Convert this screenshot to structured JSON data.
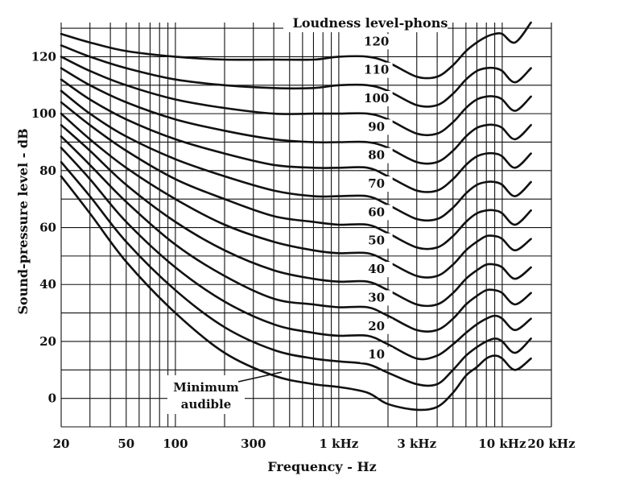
{
  "chart_data": {
    "type": "line",
    "title": "Loudness level-phons",
    "xlabel": "Frequency - Hz",
    "ylabel": "Sound-pressure level - dB",
    "xscale": "log",
    "xlim": [
      20,
      20000
    ],
    "ylim": [
      -10,
      132
    ],
    "grid": true,
    "x_tick_labels": [
      {
        "value": 20,
        "label": "20"
      },
      {
        "value": 50,
        "label": "50"
      },
      {
        "value": 100,
        "label": "100"
      },
      {
        "value": 300,
        "label": "300"
      },
      {
        "value": 1000,
        "label": "1 kHz"
      },
      {
        "value": 3000,
        "label": "3 kHz"
      },
      {
        "value": 10000,
        "label": "10 kHz"
      },
      {
        "value": 20000,
        "label": "20 kHz"
      }
    ],
    "y_tick_labels": [
      {
        "value": 0,
        "label": "0"
      },
      {
        "value": 20,
        "label": "20"
      },
      {
        "value": 40,
        "label": "40"
      },
      {
        "value": 60,
        "label": "60"
      },
      {
        "value": 80,
        "label": "80"
      },
      {
        "value": 100,
        "label": "100"
      },
      {
        "value": 120,
        "label": "120"
      }
    ],
    "curve_labels": [
      {
        "text": "120",
        "value": 120
      },
      {
        "text": "110",
        "value": 110
      },
      {
        "text": "100",
        "value": 100
      },
      {
        "text": "90",
        "value": 90
      },
      {
        "text": "80",
        "value": 80
      },
      {
        "text": "70",
        "value": 70
      },
      {
        "text": "60",
        "value": 60
      },
      {
        "text": "50",
        "value": 50
      },
      {
        "text": "40",
        "value": 40
      },
      {
        "text": "30",
        "value": 30
      },
      {
        "text": "20",
        "value": 20
      },
      {
        "text": "10",
        "value": 10
      }
    ],
    "annotation": {
      "line1": "Minimum",
      "line2": "audible"
    },
    "x": [
      20,
      30,
      50,
      100,
      200,
      400,
      700,
      1000,
      1500,
      2000,
      3000,
      4000,
      5000,
      6000,
      7000,
      8000,
      9000,
      10000,
      12000,
      15000
    ],
    "series": [
      {
        "label": "Minimum audible",
        "values": [
          78,
          65,
          48,
          30,
          16,
          8,
          5,
          4,
          2,
          -2,
          -4,
          -3,
          2,
          8,
          11,
          14,
          15,
          14,
          10,
          14
        ]
      },
      {
        "label": "10",
        "values": [
          83,
          71,
          55,
          38,
          25,
          17,
          14,
          13,
          12,
          9,
          5,
          5,
          10,
          15,
          18,
          20,
          21,
          20,
          16,
          21
        ]
      },
      {
        "label": "20",
        "values": [
          88,
          77,
          62,
          46,
          34,
          26,
          23,
          22,
          22,
          19,
          14,
          15,
          19,
          23,
          26,
          28,
          29,
          28,
          24,
          28
        ]
      },
      {
        "label": "30",
        "values": [
          92,
          82,
          69,
          54,
          43,
          35,
          33,
          32,
          32,
          29,
          24,
          24,
          28,
          33,
          36,
          38,
          38,
          37,
          33,
          37
        ]
      },
      {
        "label": "40",
        "values": [
          96,
          87,
          75,
          62,
          52,
          45,
          42,
          41,
          41,
          38,
          33,
          33,
          37,
          42,
          45,
          47,
          47,
          46,
          42,
          46
        ]
      },
      {
        "label": "50",
        "values": [
          100,
          91,
          81,
          70,
          61,
          55,
          52,
          51,
          51,
          48,
          43,
          43,
          47,
          52,
          55,
          57,
          57,
          56,
          52,
          56
        ]
      },
      {
        "label": "60",
        "values": [
          104,
          96,
          87,
          77,
          70,
          64,
          62,
          61,
          61,
          58,
          53,
          53,
          57,
          62,
          65,
          66,
          66,
          65,
          61,
          66
        ]
      },
      {
        "label": "70",
        "values": [
          108,
          100,
          92,
          84,
          78,
          73,
          71,
          71,
          71,
          68,
          63,
          63,
          67,
          72,
          75,
          76,
          76,
          75,
          71,
          76
        ]
      },
      {
        "label": "80",
        "values": [
          112,
          105,
          98,
          91,
          86,
          82,
          81,
          81,
          81,
          78,
          73,
          73,
          77,
          82,
          85,
          86,
          86,
          85,
          81,
          86
        ]
      },
      {
        "label": "90",
        "values": [
          116,
          110,
          104,
          98,
          94,
          91,
          90,
          90,
          90,
          88,
          83,
          83,
          87,
          92,
          95,
          96,
          96,
          95,
          91,
          96
        ]
      },
      {
        "label": "100",
        "values": [
          120,
          115,
          110,
          105,
          102,
          100,
          100,
          100,
          100,
          98,
          93,
          93,
          97,
          102,
          105,
          106,
          106,
          105,
          101,
          106
        ]
      },
      {
        "label": "110",
        "values": [
          124,
          120,
          116,
          112,
          110,
          109,
          109,
          110,
          110,
          108,
          103,
          103,
          107,
          112,
          115,
          116,
          116,
          115,
          111,
          116
        ]
      },
      {
        "label": "120",
        "values": [
          128,
          125,
          122,
          120,
          119,
          119,
          119,
          120,
          120,
          118,
          113,
          113,
          117,
          122,
          125,
          127,
          128,
          128,
          125,
          132
        ]
      }
    ]
  }
}
